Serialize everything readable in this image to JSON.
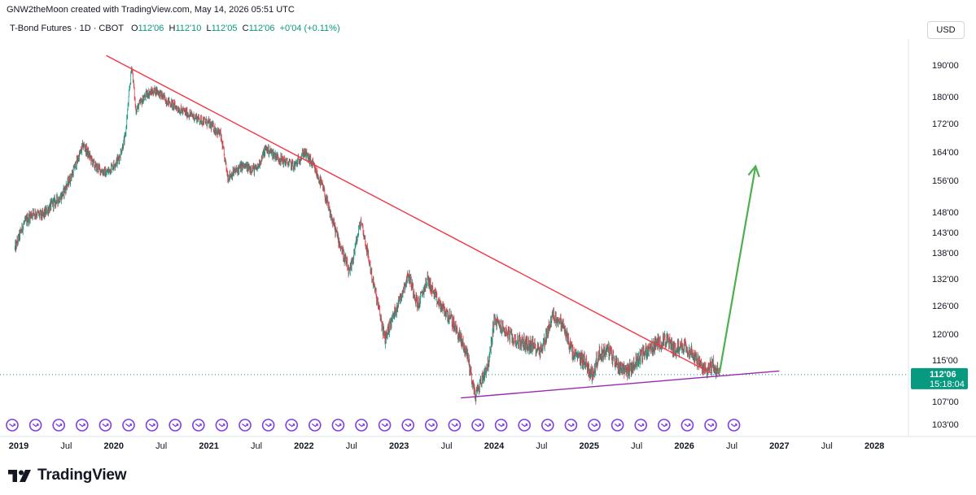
{
  "header": {
    "attribution": "GNW2theMoon created with TradingView.com, May 14, 2026 05:51 UTC"
  },
  "legend": {
    "symbol": "T-Bond Futures · 1D · CBOT",
    "open_label": "O",
    "open": "112'06",
    "high_label": "H",
    "high": "112'10",
    "low_label": "L",
    "low": "112'05",
    "close_label": "C",
    "close": "112'06",
    "change": "+0'04 (+0.11%)"
  },
  "currency_button": "USD",
  "branding": {
    "logo_text": "TradingView"
  },
  "colors": {
    "up": "#089981",
    "down": "#f23645",
    "resistance": "#f23645",
    "support": "#9c27b0",
    "projection": "#4caf50",
    "event_icon": "#7b3fe4"
  },
  "price_tag": {
    "price": "112'06",
    "countdown": "15:18:04"
  },
  "chart_data": {
    "type": "candlestick",
    "title": "T-Bond Futures · 1D · CBOT",
    "y_ticks": [
      {
        "label": "190'00",
        "value": 190
      },
      {
        "label": "180'00",
        "value": 180
      },
      {
        "label": "172'00",
        "value": 172
      },
      {
        "label": "164'00",
        "value": 164
      },
      {
        "label": "156'00",
        "value": 156
      },
      {
        "label": "148'00",
        "value": 148
      },
      {
        "label": "143'00",
        "value": 143
      },
      {
        "label": "138'00",
        "value": 138
      },
      {
        "label": "132'00",
        "value": 132
      },
      {
        "label": "126'00",
        "value": 126
      },
      {
        "label": "120'00",
        "value": 120
      },
      {
        "label": "115'00",
        "value": 115
      },
      {
        "label": "107'00",
        "value": 107
      },
      {
        "label": "103'00",
        "value": 103
      }
    ],
    "x_ticks": [
      {
        "label": "2019",
        "date": 2019.0,
        "bold": true
      },
      {
        "label": "Jul",
        "date": 2019.5
      },
      {
        "label": "2020",
        "date": 2020.0,
        "bold": true
      },
      {
        "label": "Jul",
        "date": 2020.5
      },
      {
        "label": "2021",
        "date": 2021.0,
        "bold": true
      },
      {
        "label": "Jul",
        "date": 2021.5
      },
      {
        "label": "2022",
        "date": 2022.0,
        "bold": true
      },
      {
        "label": "Jul",
        "date": 2022.5
      },
      {
        "label": "2023",
        "date": 2023.0,
        "bold": true
      },
      {
        "label": "Jul",
        "date": 2023.5
      },
      {
        "label": "2024",
        "date": 2024.0,
        "bold": true
      },
      {
        "label": "Jul",
        "date": 2024.5
      },
      {
        "label": "2025",
        "date": 2025.0,
        "bold": true
      },
      {
        "label": "Jul",
        "date": 2025.5
      },
      {
        "label": "2026",
        "date": 2026.0,
        "bold": true
      },
      {
        "label": "Jul",
        "date": 2026.5
      },
      {
        "label": "2027",
        "date": 2027.0,
        "bold": true
      },
      {
        "label": "Jul",
        "date": 2027.5
      },
      {
        "label": "2028",
        "date": 2028.0,
        "bold": true
      }
    ],
    "x_range": [
      2018.95,
      2029.0
    ],
    "price_path": [
      [
        2018.96,
        139
      ],
      [
        2019.05,
        145
      ],
      [
        2019.15,
        148
      ],
      [
        2019.25,
        147
      ],
      [
        2019.35,
        150
      ],
      [
        2019.45,
        152
      ],
      [
        2019.55,
        157
      ],
      [
        2019.68,
        166
      ],
      [
        2019.8,
        160
      ],
      [
        2019.92,
        158
      ],
      [
        2020.05,
        162
      ],
      [
        2020.12,
        168
      ],
      [
        2020.19,
        190
      ],
      [
        2020.23,
        176
      ],
      [
        2020.35,
        181
      ],
      [
        2020.45,
        182
      ],
      [
        2020.55,
        179
      ],
      [
        2020.7,
        176
      ],
      [
        2020.85,
        174
      ],
      [
        2021.0,
        172
      ],
      [
        2021.12,
        169
      ],
      [
        2021.2,
        157
      ],
      [
        2021.35,
        160
      ],
      [
        2021.5,
        159
      ],
      [
        2021.6,
        165
      ],
      [
        2021.75,
        162
      ],
      [
        2021.9,
        160
      ],
      [
        2022.0,
        164
      ],
      [
        2022.08,
        161
      ],
      [
        2022.2,
        154
      ],
      [
        2022.27,
        148
      ],
      [
        2022.38,
        140
      ],
      [
        2022.48,
        133
      ],
      [
        2022.6,
        146
      ],
      [
        2022.72,
        132
      ],
      [
        2022.85,
        119
      ],
      [
        2022.98,
        126
      ],
      [
        2023.1,
        133
      ],
      [
        2023.2,
        126
      ],
      [
        2023.3,
        132
      ],
      [
        2023.4,
        127
      ],
      [
        2023.55,
        123
      ],
      [
        2023.72,
        116
      ],
      [
        2023.8,
        108
      ],
      [
        2023.95,
        115
      ],
      [
        2024.0,
        123
      ],
      [
        2024.1,
        121
      ],
      [
        2024.2,
        119
      ],
      [
        2024.35,
        118
      ],
      [
        2024.5,
        117
      ],
      [
        2024.62,
        124
      ],
      [
        2024.72,
        122
      ],
      [
        2024.83,
        116
      ],
      [
        2024.95,
        115
      ],
      [
        2025.03,
        112
      ],
      [
        2025.1,
        116
      ],
      [
        2025.2,
        117
      ],
      [
        2025.3,
        114
      ],
      [
        2025.42,
        113
      ],
      [
        2025.55,
        116
      ],
      [
        2025.7,
        118
      ],
      [
        2025.8,
        119
      ],
      [
        2025.9,
        117
      ],
      [
        2026.0,
        118
      ],
      [
        2026.1,
        116
      ],
      [
        2026.2,
        113
      ],
      [
        2026.3,
        114
      ],
      [
        2026.37,
        112.2
      ]
    ],
    "drawings": {
      "resistance_line": {
        "from": [
          2019.92,
          193
        ],
        "to": [
          2026.28,
          112.5
        ]
      },
      "support_line": {
        "from": [
          2023.65,
          107.7
        ],
        "to": [
          2027.0,
          112.9
        ]
      },
      "projection_arrow": {
        "from": [
          2026.37,
          112.5
        ],
        "to": [
          2026.75,
          160
        ]
      }
    },
    "last_price": 112.19,
    "event_markers_count": 32
  }
}
